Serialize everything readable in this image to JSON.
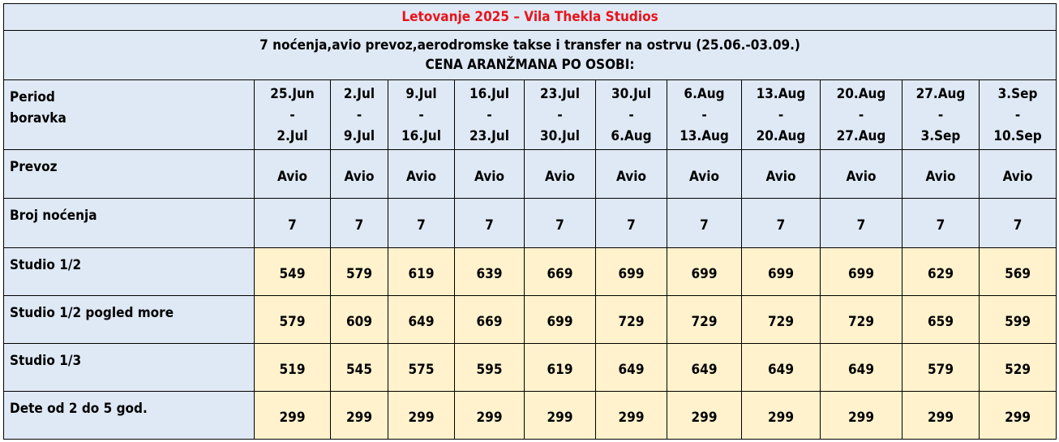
{
  "title": "Letovanje 2025 – Vila Thekla Studios",
  "subtitle_line1": "7 noćenja,avio prevoz,aerodromske takse i transfer na ostrvu (25.06.-03.09.)",
  "subtitle_line2": "CENA ARANŽMANA PO OSOBI:",
  "row_labels": {
    "period_line1": "Period",
    "period_line2": "boravka",
    "prevoz": "Prevoz",
    "nocenja": "Broj noćenja"
  },
  "dash": "-",
  "periods": [
    {
      "from": "25.Jun",
      "to": "2.Jul"
    },
    {
      "from": "2.Jul",
      "to": "9.Jul"
    },
    {
      "from": "9.Jul",
      "to": "16.Jul"
    },
    {
      "from": "16.Jul",
      "to": "23.Jul"
    },
    {
      "from": "23.Jul",
      "to": "30.Jul"
    },
    {
      "from": "30.Jul",
      "to": "6.Aug"
    },
    {
      "from": "6.Aug",
      "to": "13.Aug"
    },
    {
      "from": "13.Aug",
      "to": "20.Aug"
    },
    {
      "from": "20.Aug",
      "to": "27.Aug"
    },
    {
      "from": "27.Aug",
      "to": "3.Sep"
    },
    {
      "from": "3.Sep",
      "to": "10.Sep"
    }
  ],
  "transport": [
    "Avio",
    "Avio",
    "Avio",
    "Avio",
    "Avio",
    "Avio",
    "Avio",
    "Avio",
    "Avio",
    "Avio",
    "Avio"
  ],
  "nights": [
    "7",
    "7",
    "7",
    "7",
    "7",
    "7",
    "7",
    "7",
    "7",
    "7",
    "7"
  ],
  "price_rows": [
    {
      "label": "Studio 1/2",
      "values": [
        "549",
        "579",
        "619",
        "639",
        "669",
        "699",
        "699",
        "699",
        "699",
        "629",
        "569"
      ]
    },
    {
      "label": "Studio 1/2 pogled more",
      "values": [
        "579",
        "609",
        "649",
        "669",
        "699",
        "729",
        "729",
        "729",
        "729",
        "659",
        "599"
      ]
    },
    {
      "label": "Studio 1/3",
      "values": [
        "519",
        "545",
        "575",
        "595",
        "619",
        "649",
        "649",
        "649",
        "649",
        "579",
        "529"
      ]
    },
    {
      "label": "Dete od 2 do 5 god.",
      "values": [
        "299",
        "299",
        "299",
        "299",
        "299",
        "299",
        "299",
        "299",
        "299",
        "299",
        "299"
      ]
    }
  ]
}
